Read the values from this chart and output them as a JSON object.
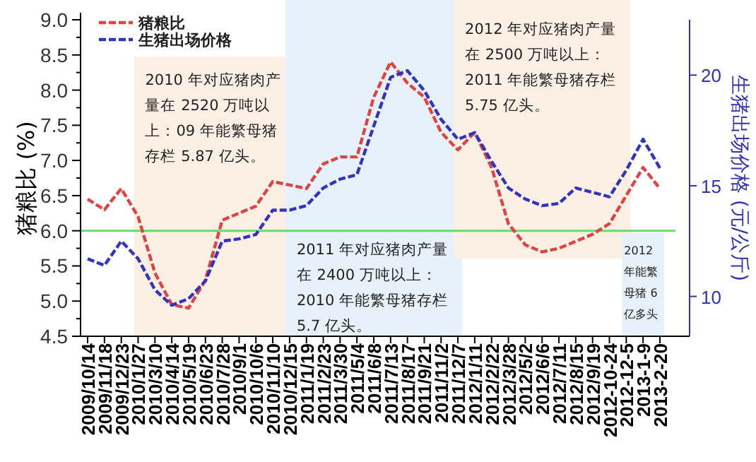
{
  "chart_data": {
    "type": "line",
    "ylabel": "猪粮比 (%)",
    "y2label": "生猪出场价格 (元/公斤)",
    "categories": [
      "2009/10/14",
      "2009/11/18",
      "2009/12/23",
      "2010/1/27",
      "2010/3/10",
      "2010/4/14",
      "2010/5/19",
      "2010/6/23",
      "2010/7/28",
      "2010/9/1",
      "2010/10/6",
      "2010/11/10",
      "2010/12/15",
      "2011/1/19",
      "2011/2/23",
      "2011/3/30",
      "2011/5/4",
      "2011/6/8",
      "2011/7/13",
      "2011/8/17",
      "2011/9/21",
      "2011/11/2",
      "2011/12/7",
      "2012/1/11",
      "2012/2/22",
      "2012/3/28",
      "2012/5/2",
      "2012/6/6",
      "2012/7/11",
      "2012/8/15",
      "2012/9/19",
      "2012-10-24",
      "2012-12-5",
      "2013-1-9",
      "2013-2-20"
    ],
    "series": [
      {
        "name": "猪粮比",
        "color": "#dd4444",
        "line_style": "dashed",
        "values": [
          6.45,
          6.3,
          6.6,
          6.2,
          5.4,
          4.95,
          4.9,
          5.3,
          6.15,
          6.25,
          6.35,
          6.7,
          6.65,
          6.6,
          6.95,
          7.05,
          7.05,
          7.9,
          8.4,
          8.1,
          7.9,
          7.4,
          7.15,
          7.4,
          6.9,
          6.1,
          5.8,
          5.7,
          5.75,
          5.85,
          5.95,
          6.1,
          6.5,
          6.9,
          6.6
        ]
      },
      {
        "name": "生猪出场价格",
        "color": "#3333bb",
        "line_style": "dashed",
        "axis": "y2",
        "values": [
          11.7,
          11.4,
          12.5,
          11.7,
          10.3,
          9.6,
          9.9,
          10.7,
          12.5,
          12.6,
          12.8,
          13.9,
          13.9,
          14.1,
          14.9,
          15.3,
          15.5,
          17.7,
          19.9,
          20.2,
          19.3,
          18.0,
          17.1,
          17.4,
          16.1,
          14.9,
          14.4,
          14.1,
          14.2,
          14.9,
          14.7,
          14.5,
          15.7,
          17.1,
          15.8
        ]
      }
    ],
    "ylim": [
      4.5,
      9.0
    ],
    "yticks": [
      {
        "value": 4.5,
        "label": "4.5"
      },
      {
        "value": 5,
        "label": "5.0"
      },
      {
        "value": 5.5,
        "label": "5.5"
      },
      {
        "value": 6,
        "label": "6.0"
      },
      {
        "value": 6.5,
        "label": "6.5"
      },
      {
        "value": 7,
        "label": "7.0"
      },
      {
        "value": 7.5,
        "label": "7.5"
      },
      {
        "value": 8,
        "label": "8.0"
      },
      {
        "value": 8.5,
        "label": "8.5"
      },
      {
        "value": 9,
        "label": "9.0"
      }
    ],
    "y2lim": [
      8.2,
      22.5
    ],
    "y2ticks": [
      10,
      15,
      20
    ],
    "ref_lines": [
      {
        "axis": "y",
        "value": 6,
        "color": "#66dd66"
      }
    ],
    "bands": [
      {
        "axis": "x",
        "from": "2010/1/27",
        "to": "2010/12/15",
        "color": "#fcefe4",
        "label": "2010 年对应猪肉产量在 2520 万吨以上：09 年能繁母猪存栏 5.87 亿头。"
      },
      {
        "axis": "x",
        "from": "2010/12/15",
        "to": "2011/12/7",
        "color": "#e6f1f9",
        "label": "2011 年对应猪肉产量在 2400 万吨以上：2010 年能繁母猪存栏 5.7 亿头。"
      },
      {
        "axis": "x",
        "from": "2011/12/7",
        "to": "2012-12-5",
        "color": "#fcefe4",
        "label": "2012 年对应猪肉产量在 2500 万吨以上：2011 年能繁母猪存栏 5.75 亿头。"
      },
      {
        "axis": "x",
        "from": "2012-12-5",
        "to": "2013-2-20",
        "color": "#e6f1f9",
        "label": "2012 年能繁母猪 6 亿多头"
      }
    ],
    "legend": "top left",
    "grid": false
  }
}
